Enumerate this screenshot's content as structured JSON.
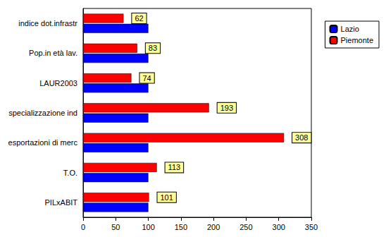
{
  "chart_data": {
    "type": "bar",
    "orientation": "horizontal",
    "categories": [
      "PILxABIT",
      "T.O.",
      "esportazioni di merc",
      "specializzazione ind",
      "LAUR2003",
      "Pop.in età lav.",
      "indice dot.infrastr"
    ],
    "series": [
      {
        "name": "Lazio",
        "color": "#0000ff",
        "values": [
          100,
          100,
          100,
          100,
          100,
          100,
          100
        ]
      },
      {
        "name": "Piemonte",
        "color": "#ff0000",
        "values": [
          101,
          113,
          308,
          193,
          74,
          83,
          62
        ],
        "data_labels": true
      }
    ],
    "xlim": [
      0,
      350
    ],
    "xticks": [
      0,
      50,
      100,
      150,
      200,
      250,
      300,
      350
    ],
    "grid": false,
    "legend": "top-right"
  }
}
